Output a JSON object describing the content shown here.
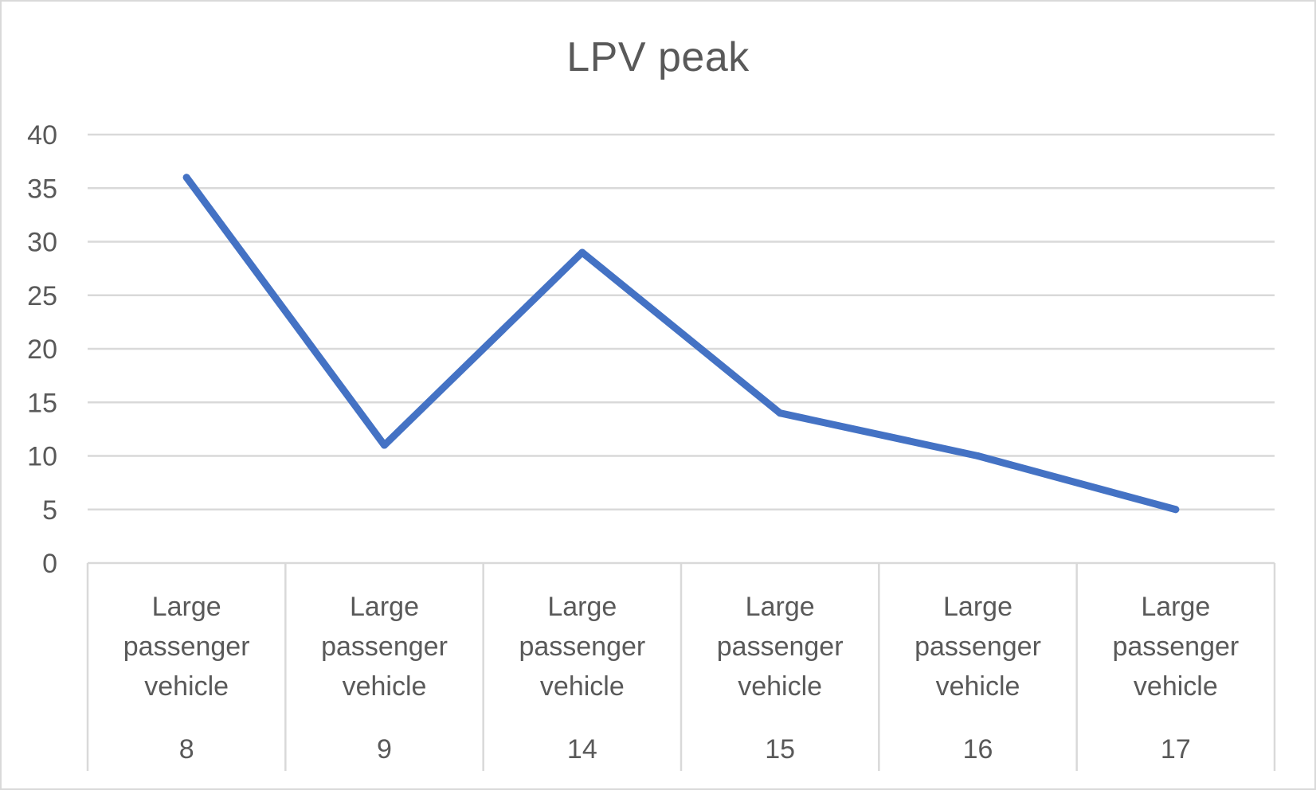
{
  "chart_data": {
    "type": "line",
    "title": "LPV peak",
    "xlabel": "",
    "ylabel": "",
    "ylim": [
      0,
      40
    ],
    "y_ticks": [
      "0",
      "5",
      "10",
      "15",
      "20",
      "25",
      "30",
      "35",
      "40"
    ],
    "grid": true,
    "legend": "none",
    "categories": [
      {
        "group": "Large passenger vehicle",
        "label": "8"
      },
      {
        "group": "Large passenger vehicle",
        "label": "9"
      },
      {
        "group": "Large passenger vehicle",
        "label": "14"
      },
      {
        "group": "Large passenger vehicle",
        "label": "15"
      },
      {
        "group": "Large passenger vehicle",
        "label": "16"
      },
      {
        "group": "Large passenger vehicle",
        "label": "17"
      }
    ],
    "series": [
      {
        "values": [
          36,
          11,
          29,
          14,
          10,
          5
        ],
        "color": "#4472c4"
      }
    ],
    "colors": {
      "line": "#4472c4",
      "gridline": "#d9d9d9",
      "text": "#595959"
    }
  }
}
